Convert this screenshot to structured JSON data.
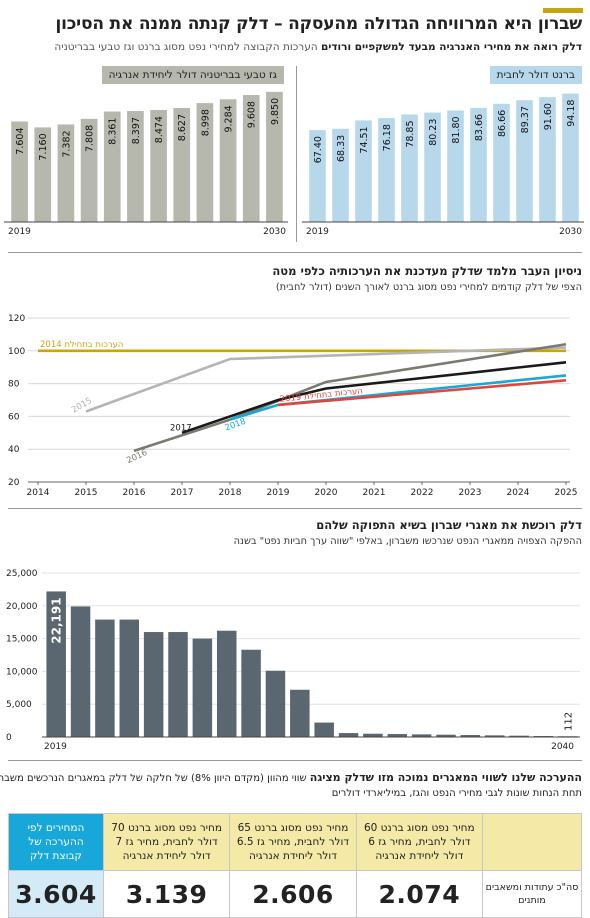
{
  "header": {
    "title": "שברון היא המרוויחה הגדולה מהעסקה – דלק קנתה ממנה את הסיכון",
    "subtitle_bold": "דלק רואה את מחירי האנרגיה מבעד למשקפיים ורודים",
    "subtitle_light": "הערכות הקבוצה למחירי נפט מסוג ברנט וגז טבעי בבריטניה"
  },
  "colors": {
    "accent": "#c8a410",
    "gas_bars": "#b7b8ad",
    "brent_bars": "#b7d8ea",
    "dark_bars": "#5b6770",
    "table_head": "#f5e9a8",
    "table_head_blue": "#18a7d9"
  },
  "chart_data": [
    {
      "type": "bar",
      "title": "ברנט דולר לחבית",
      "categories": [
        "2019",
        "2020",
        "2021",
        "2022",
        "2023",
        "2024",
        "2025",
        "2026",
        "2027",
        "2028",
        "2029",
        "2030"
      ],
      "values": [
        67.4,
        68.33,
        74.51,
        76.18,
        78.85,
        80.23,
        81.8,
        83.66,
        86.66,
        89.37,
        91.6,
        94.18
      ],
      "labels": [
        "67.40",
        "68.33",
        "74.51",
        "76.18",
        "78.85",
        "80.23",
        "81.80",
        "83.66",
        "86.66",
        "89.37",
        "91.60",
        "94.18"
      ],
      "x_ticks": [
        "2019",
        "2030"
      ],
      "ylim": [
        0,
        110
      ]
    },
    {
      "type": "bar",
      "title": "גז טבעי בבריטניה דולר ליחידת אנרגיה",
      "categories": [
        "2019",
        "2020",
        "2021",
        "2022",
        "2023",
        "2024",
        "2025",
        "2026",
        "2027",
        "2028",
        "2029",
        "2030"
      ],
      "values": [
        7.604,
        7.16,
        7.382,
        7.808,
        8.361,
        8.397,
        8.474,
        8.627,
        8.998,
        9.284,
        9.608,
        9.85
      ],
      "labels": [
        "7.604",
        "7.160",
        "7.382",
        "7.808",
        "8.361",
        "8.397",
        "8.474",
        "8.627",
        "8.998",
        "9.284",
        "9.608",
        "9.850"
      ],
      "x_ticks": [
        "2019",
        "2030"
      ],
      "ylim": [
        0,
        11.2
      ]
    },
    {
      "type": "line",
      "title": "ניסיון העבר מלמד שדלק מעדכנת את הערכותיה כלפי מטה",
      "subtitle": "הצפי של דלק קודמים למחירי נפט מסוג ברנט לאורך השנים (דולר לחבית)",
      "x": [
        2014,
        2015,
        2016,
        2017,
        2018,
        2019,
        2020,
        2021,
        2022,
        2023,
        2024,
        2025
      ],
      "ylim": [
        20,
        120
      ],
      "y_ticks": [
        20,
        40,
        60,
        80,
        100,
        120
      ],
      "grid": true,
      "series": [
        {
          "name": "הערכות בתחילת 2014",
          "color": "#c8a410",
          "points": [
            [
              2014,
              100
            ],
            [
              2025,
              100
            ]
          ]
        },
        {
          "name": "2015",
          "color": "#b4b4b0",
          "points": [
            [
              2015,
              63
            ],
            [
              2018,
              95
            ],
            [
              2025,
              102
            ]
          ]
        },
        {
          "name": "2016",
          "color": "#7a7a70",
          "points": [
            [
              2016,
              39
            ],
            [
              2018,
              58
            ],
            [
              2020,
              81
            ],
            [
              2025,
              104
            ]
          ]
        },
        {
          "name": "2017",
          "color": "#1a1a1a",
          "points": [
            [
              2017,
              50
            ],
            [
              2019,
              70
            ],
            [
              2020,
              77
            ],
            [
              2025,
              93
            ]
          ]
        },
        {
          "name": "2018",
          "color": "#19a8da",
          "points": [
            [
              2018,
              58
            ],
            [
              2019,
              67
            ],
            [
              2025,
              85
            ]
          ]
        },
        {
          "name": "הערכות בתחילת 2019",
          "color": "#e0473c",
          "points": [
            [
              2019,
              67
            ],
            [
              2025,
              82
            ]
          ]
        }
      ]
    },
    {
      "type": "bar",
      "title": "דלק רוכשת את מאגרי שברון בשיא התפוקה שלהם",
      "subtitle": "ההפקה הצפויה ממאגרי הנפט שנרכשו משברון, באלפי \"שווה ערך חביות נפט\" בשנה",
      "categories": [
        "2019",
        "2020",
        "2021",
        "2022",
        "2023",
        "2024",
        "2025",
        "2026",
        "2027",
        "2028",
        "2029",
        "2030",
        "2031",
        "2032",
        "2033",
        "2034",
        "2035",
        "2036",
        "2037",
        "2038",
        "2039",
        "2040"
      ],
      "values": [
        22191,
        19900,
        17900,
        17900,
        16000,
        16000,
        15000,
        16200,
        13300,
        10100,
        7200,
        2200,
        600,
        500,
        450,
        400,
        350,
        300,
        250,
        200,
        150,
        112
      ],
      "annotated": {
        "first": "22,191",
        "last": "112"
      },
      "x_ticks": [
        "2019",
        "2040"
      ],
      "y_ticks": [
        "0",
        "5,000",
        "10,000",
        "15,000",
        "20,000",
        "25,000"
      ],
      "ylim": [
        0,
        25000
      ]
    }
  ],
  "table": {
    "title_bold": "ההערכה שלנו לשווי המאגרים נמוכה מזו שדלק מציגה",
    "title_rest": "שווי מהוון (מקדם היוון 8%) של חלקה של דלק במאגרים הנרכשים משברון,",
    "subtitle": "תחת הנחות שונות לגבי מחירי הנפט והגז, במיליארדי דולרים",
    "row_label": "סה\"כ עתודות ומשאבים מותנים",
    "columns": [
      {
        "header": "מחיר נפט מסוג ברנט 60 דולר לחבית, מחיר גז 6 דולר ליחידת אנרגיה",
        "value": "2.074"
      },
      {
        "header": "מחיר נפט מסוג ברנט 65 דולר לחבית, מחיר גז 6.5 דולר ליחידת אנרגיה",
        "value": "2.606"
      },
      {
        "header": "מחיר נפט מסוג ברנט 70 דולר לחבית, מחיר גז 7 דולר ליחידת אנרגיה",
        "value": "3.139"
      },
      {
        "header": "המחירים לפי ההערכה של קבוצת דלק",
        "value": "3.604"
      }
    ]
  }
}
